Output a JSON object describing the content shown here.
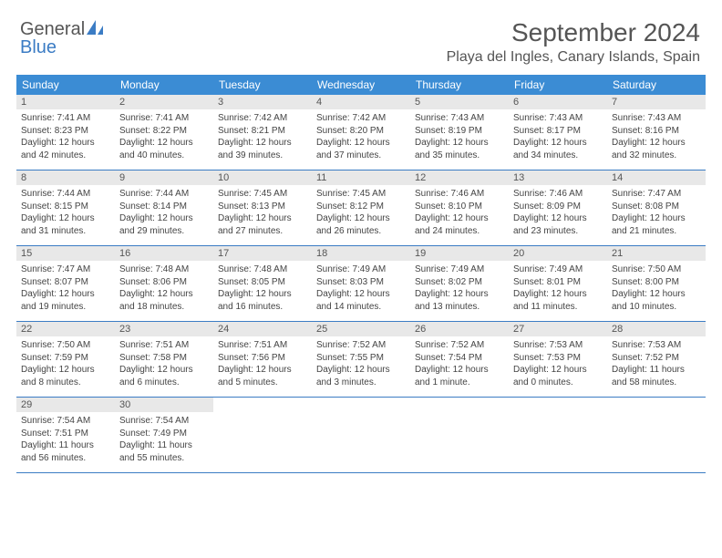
{
  "logo": {
    "text1": "General",
    "text2": "Blue"
  },
  "header": {
    "monthTitle": "September 2024",
    "location": "Playa del Ingles, Canary Islands, Spain"
  },
  "colors": {
    "headerBar": "#3b8cd4",
    "accent": "#3b7cc4",
    "dayStrip": "#e8e8e8",
    "text": "#555555",
    "bodyText": "#444444",
    "white": "#ffffff"
  },
  "dayHeaders": [
    "Sunday",
    "Monday",
    "Tuesday",
    "Wednesday",
    "Thursday",
    "Friday",
    "Saturday"
  ],
  "weeks": [
    [
      {
        "n": "1",
        "sr": "7:41 AM",
        "ss": "8:23 PM",
        "dl": "12 hours and 42 minutes."
      },
      {
        "n": "2",
        "sr": "7:41 AM",
        "ss": "8:22 PM",
        "dl": "12 hours and 40 minutes."
      },
      {
        "n": "3",
        "sr": "7:42 AM",
        "ss": "8:21 PM",
        "dl": "12 hours and 39 minutes."
      },
      {
        "n": "4",
        "sr": "7:42 AM",
        "ss": "8:20 PM",
        "dl": "12 hours and 37 minutes."
      },
      {
        "n": "5",
        "sr": "7:43 AM",
        "ss": "8:19 PM",
        "dl": "12 hours and 35 minutes."
      },
      {
        "n": "6",
        "sr": "7:43 AM",
        "ss": "8:17 PM",
        "dl": "12 hours and 34 minutes."
      },
      {
        "n": "7",
        "sr": "7:43 AM",
        "ss": "8:16 PM",
        "dl": "12 hours and 32 minutes."
      }
    ],
    [
      {
        "n": "8",
        "sr": "7:44 AM",
        "ss": "8:15 PM",
        "dl": "12 hours and 31 minutes."
      },
      {
        "n": "9",
        "sr": "7:44 AM",
        "ss": "8:14 PM",
        "dl": "12 hours and 29 minutes."
      },
      {
        "n": "10",
        "sr": "7:45 AM",
        "ss": "8:13 PM",
        "dl": "12 hours and 27 minutes."
      },
      {
        "n": "11",
        "sr": "7:45 AM",
        "ss": "8:12 PM",
        "dl": "12 hours and 26 minutes."
      },
      {
        "n": "12",
        "sr": "7:46 AM",
        "ss": "8:10 PM",
        "dl": "12 hours and 24 minutes."
      },
      {
        "n": "13",
        "sr": "7:46 AM",
        "ss": "8:09 PM",
        "dl": "12 hours and 23 minutes."
      },
      {
        "n": "14",
        "sr": "7:47 AM",
        "ss": "8:08 PM",
        "dl": "12 hours and 21 minutes."
      }
    ],
    [
      {
        "n": "15",
        "sr": "7:47 AM",
        "ss": "8:07 PM",
        "dl": "12 hours and 19 minutes."
      },
      {
        "n": "16",
        "sr": "7:48 AM",
        "ss": "8:06 PM",
        "dl": "12 hours and 18 minutes."
      },
      {
        "n": "17",
        "sr": "7:48 AM",
        "ss": "8:05 PM",
        "dl": "12 hours and 16 minutes."
      },
      {
        "n": "18",
        "sr": "7:49 AM",
        "ss": "8:03 PM",
        "dl": "12 hours and 14 minutes."
      },
      {
        "n": "19",
        "sr": "7:49 AM",
        "ss": "8:02 PM",
        "dl": "12 hours and 13 minutes."
      },
      {
        "n": "20",
        "sr": "7:49 AM",
        "ss": "8:01 PM",
        "dl": "12 hours and 11 minutes."
      },
      {
        "n": "21",
        "sr": "7:50 AM",
        "ss": "8:00 PM",
        "dl": "12 hours and 10 minutes."
      }
    ],
    [
      {
        "n": "22",
        "sr": "7:50 AM",
        "ss": "7:59 PM",
        "dl": "12 hours and 8 minutes."
      },
      {
        "n": "23",
        "sr": "7:51 AM",
        "ss": "7:58 PM",
        "dl": "12 hours and 6 minutes."
      },
      {
        "n": "24",
        "sr": "7:51 AM",
        "ss": "7:56 PM",
        "dl": "12 hours and 5 minutes."
      },
      {
        "n": "25",
        "sr": "7:52 AM",
        "ss": "7:55 PM",
        "dl": "12 hours and 3 minutes."
      },
      {
        "n": "26",
        "sr": "7:52 AM",
        "ss": "7:54 PM",
        "dl": "12 hours and 1 minute."
      },
      {
        "n": "27",
        "sr": "7:53 AM",
        "ss": "7:53 PM",
        "dl": "12 hours and 0 minutes."
      },
      {
        "n": "28",
        "sr": "7:53 AM",
        "ss": "7:52 PM",
        "dl": "11 hours and 58 minutes."
      }
    ],
    [
      {
        "n": "29",
        "sr": "7:54 AM",
        "ss": "7:51 PM",
        "dl": "11 hours and 56 minutes."
      },
      {
        "n": "30",
        "sr": "7:54 AM",
        "ss": "7:49 PM",
        "dl": "11 hours and 55 minutes."
      },
      null,
      null,
      null,
      null,
      null
    ]
  ],
  "labels": {
    "sunrise": "Sunrise: ",
    "sunset": "Sunset: ",
    "daylight": "Daylight: "
  }
}
